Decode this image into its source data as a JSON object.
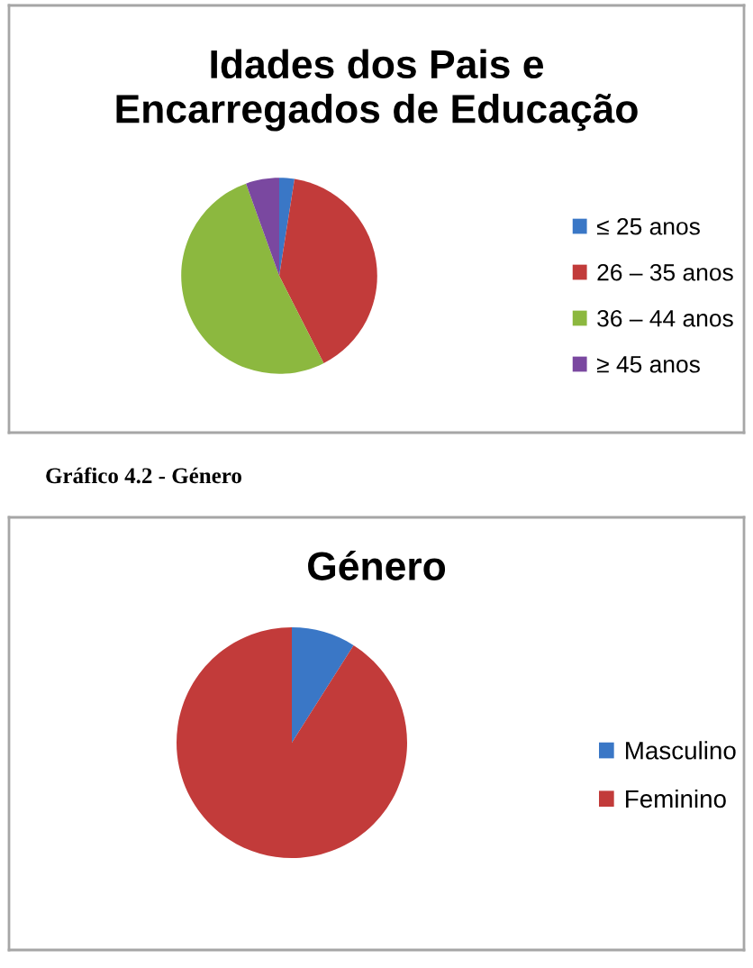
{
  "chart_data": [
    {
      "type": "pie",
      "title": "Idades dos Pais e Encarregados de Educação",
      "categories": [
        "≤ 25 anos",
        "26 – 35 anos",
        "36 – 44 anos",
        "≥ 45 anos"
      ],
      "values": [
        2.5,
        40,
        52,
        5.5
      ],
      "colors": [
        "#3a77c6",
        "#c23b3a",
        "#8cb83f",
        "#7a48a0"
      ],
      "legend": "right"
    },
    {
      "type": "pie",
      "title": "Género",
      "categories": [
        "Masculino",
        "Feminino"
      ],
      "values": [
        9,
        91
      ],
      "colors": [
        "#3a77c6",
        "#c23b3a"
      ],
      "legend": "right",
      "annotations": [
        "Gráfico 4.2 - Género"
      ]
    }
  ]
}
